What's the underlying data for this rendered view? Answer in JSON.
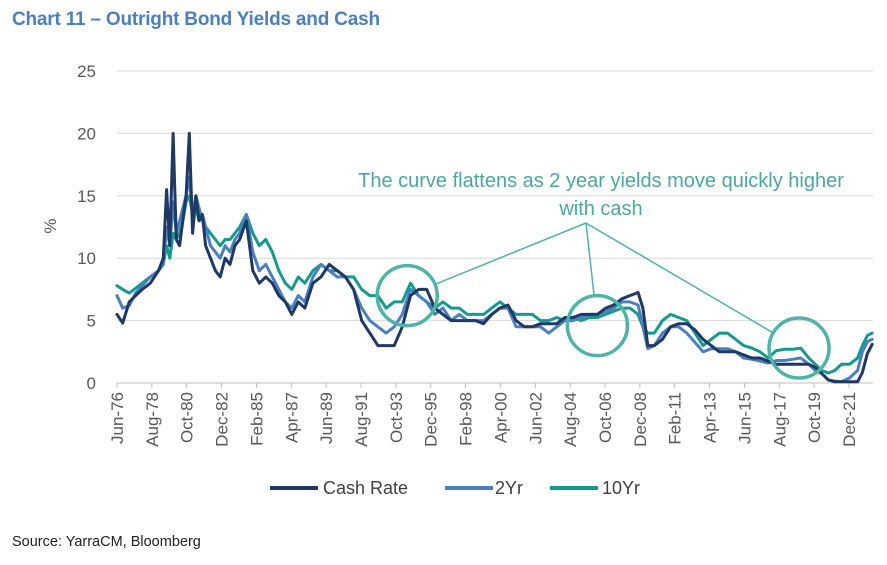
{
  "title": "Chart 11 – Outright Bond Yields and Cash",
  "source": "Source: YarraCM, Bloomberg",
  "chart_data": {
    "type": "line",
    "title": "Chart 11 – Outright Bond Yields and Cash",
    "xlabel": "",
    "ylabel": "%",
    "ylim": [
      0,
      25
    ],
    "yticks": [
      "0",
      "5",
      "10",
      "15",
      "20",
      "25"
    ],
    "xticks": [
      "Jun-76",
      "Aug-78",
      "Oct-80",
      "Dec-82",
      "Feb-85",
      "Apr-87",
      "Jun-89",
      "Aug-91",
      "Oct-93",
      "Dec-95",
      "Feb-98",
      "Apr-00",
      "Jun-02",
      "Aug-04",
      "Oct-06",
      "Dec-08",
      "Feb-11",
      "Apr-13",
      "Jun-15",
      "Aug-17",
      "Oct-19",
      "Dec-21"
    ],
    "grid": "horizontal",
    "legend_position": "bottom",
    "colors": {
      "Cash Rate": "#1f3864",
      "2Yr": "#4a7fc1",
      "10Yr": "#159a8f",
      "annotation": "#4fb3a9"
    },
    "annotation": {
      "line1": "The curve flattens as 2 year yields move quickly higher",
      "line2": "with cash",
      "circles": [
        {
          "x": 1994.3,
          "y": 7.0
        },
        {
          "x": 2006.0,
          "y": 4.6
        },
        {
          "x": 2018.4,
          "y": 2.8
        }
      ]
    },
    "series": [
      {
        "name": "Cash Rate",
        "x": [
          1976.45,
          1976.8,
          1977.2,
          1977.6,
          1978.0,
          1978.5,
          1979.0,
          1979.3,
          1979.5,
          1979.7,
          1979.9,
          1980.1,
          1980.3,
          1980.5,
          1980.7,
          1980.9,
          1981.1,
          1981.3,
          1981.5,
          1981.7,
          1981.9,
          1982.2,
          1982.5,
          1982.8,
          1983.1,
          1983.4,
          1983.7,
          1984.0,
          1984.4,
          1984.8,
          1985.2,
          1985.6,
          1986.0,
          1986.4,
          1986.8,
          1987.2,
          1987.6,
          1988.0,
          1988.5,
          1989.0,
          1989.5,
          1990.0,
          1990.5,
          1991.0,
          1991.5,
          1992.0,
          1992.5,
          1993.0,
          1993.5,
          1994.0,
          1994.5,
          1995.0,
          1995.5,
          1996.0,
          1996.5,
          1997.0,
          1997.5,
          1998.0,
          1998.5,
          1999.0,
          1999.5,
          2000.0,
          2000.5,
          2001.0,
          2001.5,
          2002.0,
          2002.5,
          2003.0,
          2003.5,
          2004.0,
          2004.5,
          2005.0,
          2005.5,
          2006.0,
          2006.5,
          2007.0,
          2007.5,
          2008.0,
          2008.5,
          2008.8,
          2009.1,
          2009.5,
          2010.0,
          2010.5,
          2011.0,
          2011.5,
          2012.0,
          2012.5,
          2013.0,
          2013.5,
          2014.0,
          2014.5,
          2015.0,
          2015.5,
          2016.0,
          2016.5,
          2017.0,
          2017.5,
          2018.0,
          2018.5,
          2019.0,
          2019.4,
          2019.8,
          2020.2,
          2020.6,
          2021.0,
          2021.5,
          2022.0,
          2022.3,
          2022.6,
          2022.9
        ],
        "values": [
          5.5,
          4.8,
          6.5,
          7.0,
          7.5,
          8.0,
          9.0,
          10.0,
          15.5,
          11.0,
          20.0,
          11.5,
          11.0,
          13.0,
          15.0,
          20.0,
          12.0,
          15.0,
          13.0,
          13.5,
          11.0,
          10.0,
          9.0,
          8.5,
          10.0,
          9.5,
          11.0,
          11.5,
          13.0,
          9.0,
          8.0,
          8.5,
          8.0,
          7.0,
          6.5,
          5.5,
          6.5,
          6.0,
          8.0,
          8.5,
          9.5,
          9.0,
          8.5,
          7.5,
          5.0,
          4.0,
          3.0,
          3.0,
          3.0,
          4.5,
          7.0,
          7.5,
          7.5,
          6.0,
          5.5,
          5.0,
          5.0,
          5.0,
          5.0,
          4.75,
          5.5,
          6.0,
          6.25,
          5.0,
          4.5,
          4.5,
          4.75,
          4.75,
          4.75,
          5.25,
          5.25,
          5.5,
          5.5,
          5.5,
          6.0,
          6.25,
          6.75,
          7.0,
          7.25,
          6.0,
          3.0,
          3.0,
          3.5,
          4.5,
          4.75,
          4.75,
          4.25,
          3.5,
          3.0,
          2.5,
          2.5,
          2.5,
          2.25,
          2.0,
          2.0,
          1.75,
          1.5,
          1.5,
          1.5,
          1.5,
          1.5,
          1.25,
          0.75,
          0.25,
          0.1,
          0.1,
          0.1,
          0.1,
          0.85,
          2.35,
          3.1
        ]
      },
      {
        "name": "2Yr",
        "x": [
          1976.45,
          1976.8,
          1977.2,
          1977.6,
          1978.0,
          1978.5,
          1979.0,
          1979.3,
          1979.5,
          1979.7,
          1979.9,
          1980.1,
          1980.3,
          1980.5,
          1980.7,
          1980.9,
          1981.1,
          1981.3,
          1981.5,
          1981.7,
          1981.9,
          1982.2,
          1982.5,
          1982.8,
          1983.1,
          1983.4,
          1983.7,
          1984.0,
          1984.4,
          1984.8,
          1985.2,
          1985.6,
          1986.0,
          1986.4,
          1986.8,
          1987.2,
          1987.6,
          1988.0,
          1988.5,
          1989.0,
          1989.5,
          1990.0,
          1990.5,
          1991.0,
          1991.5,
          1992.0,
          1992.5,
          1993.0,
          1993.5,
          1994.0,
          1994.5,
          1995.0,
          1995.5,
          1996.0,
          1996.5,
          1997.0,
          1997.5,
          1998.0,
          1998.5,
          1999.0,
          1999.5,
          2000.0,
          2000.5,
          2001.0,
          2001.5,
          2002.0,
          2002.5,
          2003.0,
          2003.5,
          2004.0,
          2004.5,
          2005.0,
          2005.5,
          2006.0,
          2006.5,
          2007.0,
          2007.5,
          2008.0,
          2008.5,
          2008.8,
          2009.1,
          2009.5,
          2010.0,
          2010.5,
          2011.0,
          2011.5,
          2012.0,
          2012.5,
          2013.0,
          2013.5,
          2014.0,
          2014.5,
          2015.0,
          2015.5,
          2016.0,
          2016.5,
          2017.0,
          2017.5,
          2018.0,
          2018.5,
          2019.0,
          2019.4,
          2019.8,
          2020.2,
          2020.6,
          2021.0,
          2021.5,
          2022.0,
          2022.3,
          2022.6,
          2022.9
        ],
        "values": [
          7.0,
          6.0,
          6.2,
          7.2,
          7.8,
          8.5,
          9.0,
          9.5,
          12.5,
          11.0,
          14.5,
          12.0,
          13.0,
          14.0,
          15.0,
          16.5,
          13.5,
          15.0,
          14.0,
          13.0,
          12.5,
          11.0,
          10.5,
          10.0,
          11.0,
          10.5,
          11.5,
          12.0,
          13.5,
          10.5,
          9.0,
          9.5,
          8.5,
          7.5,
          6.5,
          6.0,
          7.0,
          6.5,
          8.5,
          9.5,
          9.0,
          8.5,
          8.5,
          7.5,
          6.0,
          5.0,
          4.5,
          4.0,
          4.5,
          5.5,
          7.5,
          7.0,
          6.5,
          5.5,
          6.0,
          5.0,
          5.5,
          5.0,
          5.0,
          5.0,
          5.5,
          6.0,
          6.0,
          4.5,
          4.5,
          4.5,
          4.5,
          4.0,
          4.5,
          5.0,
          5.0,
          5.25,
          5.5,
          5.5,
          5.75,
          6.0,
          6.5,
          6.5,
          6.25,
          4.5,
          2.75,
          3.0,
          4.0,
          4.5,
          4.5,
          4.0,
          3.25,
          2.5,
          2.75,
          2.75,
          2.75,
          2.5,
          2.0,
          1.9,
          1.75,
          1.6,
          1.8,
          1.8,
          1.9,
          2.0,
          1.5,
          1.0,
          0.75,
          0.25,
          0.15,
          0.1,
          0.4,
          1.0,
          2.5,
          3.3,
          3.5
        ]
      },
      {
        "name": "10Yr",
        "x": [
          1976.45,
          1976.8,
          1977.2,
          1977.6,
          1978.0,
          1978.5,
          1979.0,
          1979.3,
          1979.5,
          1979.7,
          1979.9,
          1980.1,
          1980.3,
          1980.5,
          1980.7,
          1980.9,
          1981.1,
          1981.3,
          1981.5,
          1981.7,
          1981.9,
          1982.2,
          1982.5,
          1982.8,
          1983.1,
          1983.4,
          1983.7,
          1984.0,
          1984.4,
          1984.8,
          1985.2,
          1985.6,
          1986.0,
          1986.4,
          1986.8,
          1987.2,
          1987.6,
          1988.0,
          1988.5,
          1989.0,
          1989.5,
          1990.0,
          1990.5,
          1991.0,
          1991.5,
          1992.0,
          1992.5,
          1993.0,
          1993.5,
          1994.0,
          1994.5,
          1995.0,
          1995.5,
          1996.0,
          1996.5,
          1997.0,
          1997.5,
          1998.0,
          1998.5,
          1999.0,
          1999.5,
          2000.0,
          2000.5,
          2001.0,
          2001.5,
          2002.0,
          2002.5,
          2003.0,
          2003.5,
          2004.0,
          2004.5,
          2005.0,
          2005.5,
          2006.0,
          2006.5,
          2007.0,
          2007.5,
          2008.0,
          2008.5,
          2008.8,
          2009.1,
          2009.5,
          2010.0,
          2010.5,
          2011.0,
          2011.5,
          2012.0,
          2012.5,
          2013.0,
          2013.5,
          2014.0,
          2014.5,
          2015.0,
          2015.5,
          2016.0,
          2016.5,
          2017.0,
          2017.5,
          2018.0,
          2018.5,
          2019.0,
          2019.4,
          2019.8,
          2020.2,
          2020.6,
          2021.0,
          2021.5,
          2022.0,
          2022.3,
          2022.6,
          2022.9
        ],
        "values": [
          7.8,
          7.5,
          7.2,
          7.6,
          8.0,
          8.5,
          9.0,
          9.5,
          11.0,
          10.0,
          12.0,
          11.5,
          12.0,
          13.0,
          14.5,
          15.0,
          13.5,
          14.0,
          13.0,
          13.5,
          12.5,
          12.0,
          11.5,
          11.0,
          11.5,
          11.5,
          12.0,
          12.5,
          13.5,
          12.0,
          11.0,
          11.5,
          10.5,
          9.0,
          8.0,
          7.5,
          8.5,
          8.0,
          9.0,
          9.5,
          9.0,
          9.0,
          8.5,
          8.5,
          7.5,
          7.0,
          7.0,
          6.0,
          6.5,
          6.5,
          8.0,
          7.0,
          6.5,
          6.0,
          6.5,
          6.0,
          6.0,
          5.5,
          5.5,
          5.5,
          6.0,
          6.5,
          6.0,
          5.5,
          5.5,
          5.5,
          5.0,
          5.0,
          5.25,
          5.0,
          5.25,
          5.0,
          5.25,
          5.25,
          5.5,
          5.75,
          6.0,
          6.0,
          5.5,
          4.5,
          4.0,
          4.0,
          5.0,
          5.5,
          5.25,
          5.0,
          4.0,
          3.0,
          3.5,
          4.0,
          4.0,
          3.5,
          3.0,
          2.8,
          2.5,
          2.0,
          2.6,
          2.7,
          2.7,
          2.8,
          2.0,
          1.5,
          1.0,
          0.8,
          1.0,
          1.5,
          1.5,
          2.0,
          3.0,
          3.8,
          4.0
        ]
      }
    ]
  }
}
